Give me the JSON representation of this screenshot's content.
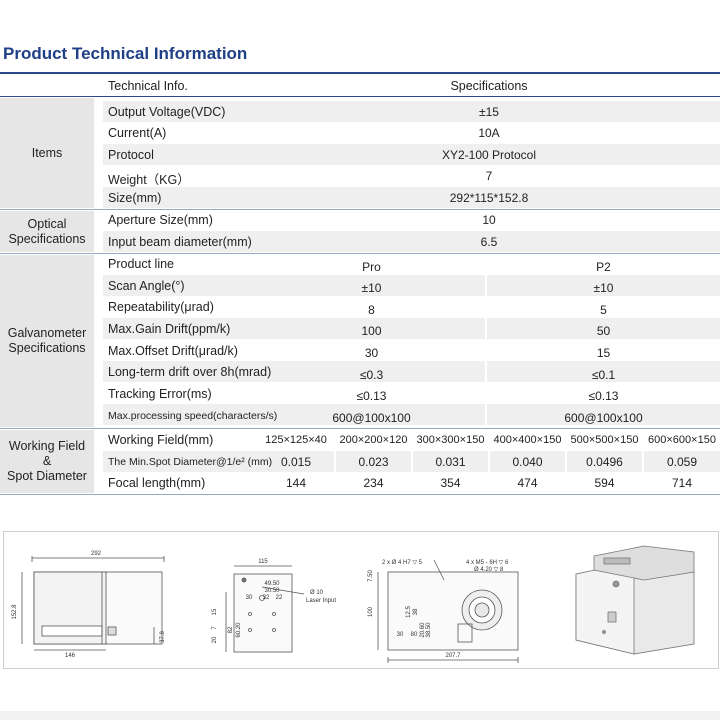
{
  "title": "Product Technical Information",
  "header": {
    "col1": "Technical Info.",
    "col2": "Specifications"
  },
  "groups": {
    "items": "Items",
    "optical": "Optical\nSpecifications",
    "galvo": "Galvanometer\nSpecifications",
    "working": "Working Field\n&\nSpot Diameter"
  },
  "items_rows": [
    {
      "label": "Output Voltage(VDC)",
      "value": "±15"
    },
    {
      "label": "Current(A)",
      "value": "10A"
    },
    {
      "label": "Protocol",
      "value": "XY2-100 Protocol"
    },
    {
      "label": "Weight（KG）",
      "value": "7"
    },
    {
      "label": "Size(mm)",
      "value": "292*115*152.8"
    }
  ],
  "optical_rows": [
    {
      "label": "Aperture Size(mm)",
      "value": "10"
    },
    {
      "label": "Input beam diameter(mm)",
      "value": "6.5"
    }
  ],
  "galvo_rows": [
    {
      "label": "Product line",
      "pro": "Pro",
      "p2": "P2"
    },
    {
      "label": "Scan Angle(°)",
      "pro": "±10",
      "p2": "±10"
    },
    {
      "label": "Repeatability(μrad)",
      "pro": "8",
      "p2": "5"
    },
    {
      "label": "Max.Gain Drift(ppm/k)",
      "pro": "100",
      "p2": "50"
    },
    {
      "label": "Max.Offset Drift(μrad/k)",
      "pro": "30",
      "p2": "15"
    },
    {
      "label": "Long-term drift over 8h(mrad)",
      "pro": "≤0.3",
      "p2": "≤0.1"
    },
    {
      "label": "Tracking Error(ms)",
      "pro": "≤0.13",
      "p2": "≤0.13"
    },
    {
      "label": "Max.processing speed(characters/s)",
      "pro": "600@100x100",
      "p2": "600@100x100"
    }
  ],
  "working_rows": [
    {
      "label": "Working Field(mm)",
      "values": [
        "125×125×40",
        "200×200×120",
        "300×300×150",
        "400×400×150",
        "500×500×150",
        "600×600×150"
      ]
    },
    {
      "label": "The Min.Spot Diameter@1/e² (mm)",
      "values": [
        "0.015",
        "0.023",
        "0.031",
        "0.040",
        "0.0496",
        "0.059"
      ]
    },
    {
      "label": "Focal length(mm)",
      "values": [
        "144",
        "234",
        "354",
        "474",
        "594",
        "714"
      ]
    }
  ],
  "drawings": {
    "side": {
      "w": "292",
      "h": "152.8",
      "base": "146",
      "off": "37.8"
    },
    "front": {
      "w": "115",
      "a": "49.50",
      "b": "30.50",
      "c": "30",
      "d": "32",
      "e": "22",
      "f": "15",
      "g": "7",
      "h": "20",
      "i": "60.20",
      "j": "82",
      "k": "Ø 10",
      "laser": "Laser Input"
    },
    "top": {
      "holes1": "2 x Ø 4 H7 ▽ 5",
      "holes2": "4 x M5 - 6H ▽ 6",
      "holes3": "Ø 4.20 ▽ 8",
      "w": "207.7",
      "h": "100",
      "a": "7.50",
      "b": "12.5",
      "c": "38",
      "d": "30",
      "e": "80",
      "f": "20.60",
      "g": "38.50"
    }
  }
}
